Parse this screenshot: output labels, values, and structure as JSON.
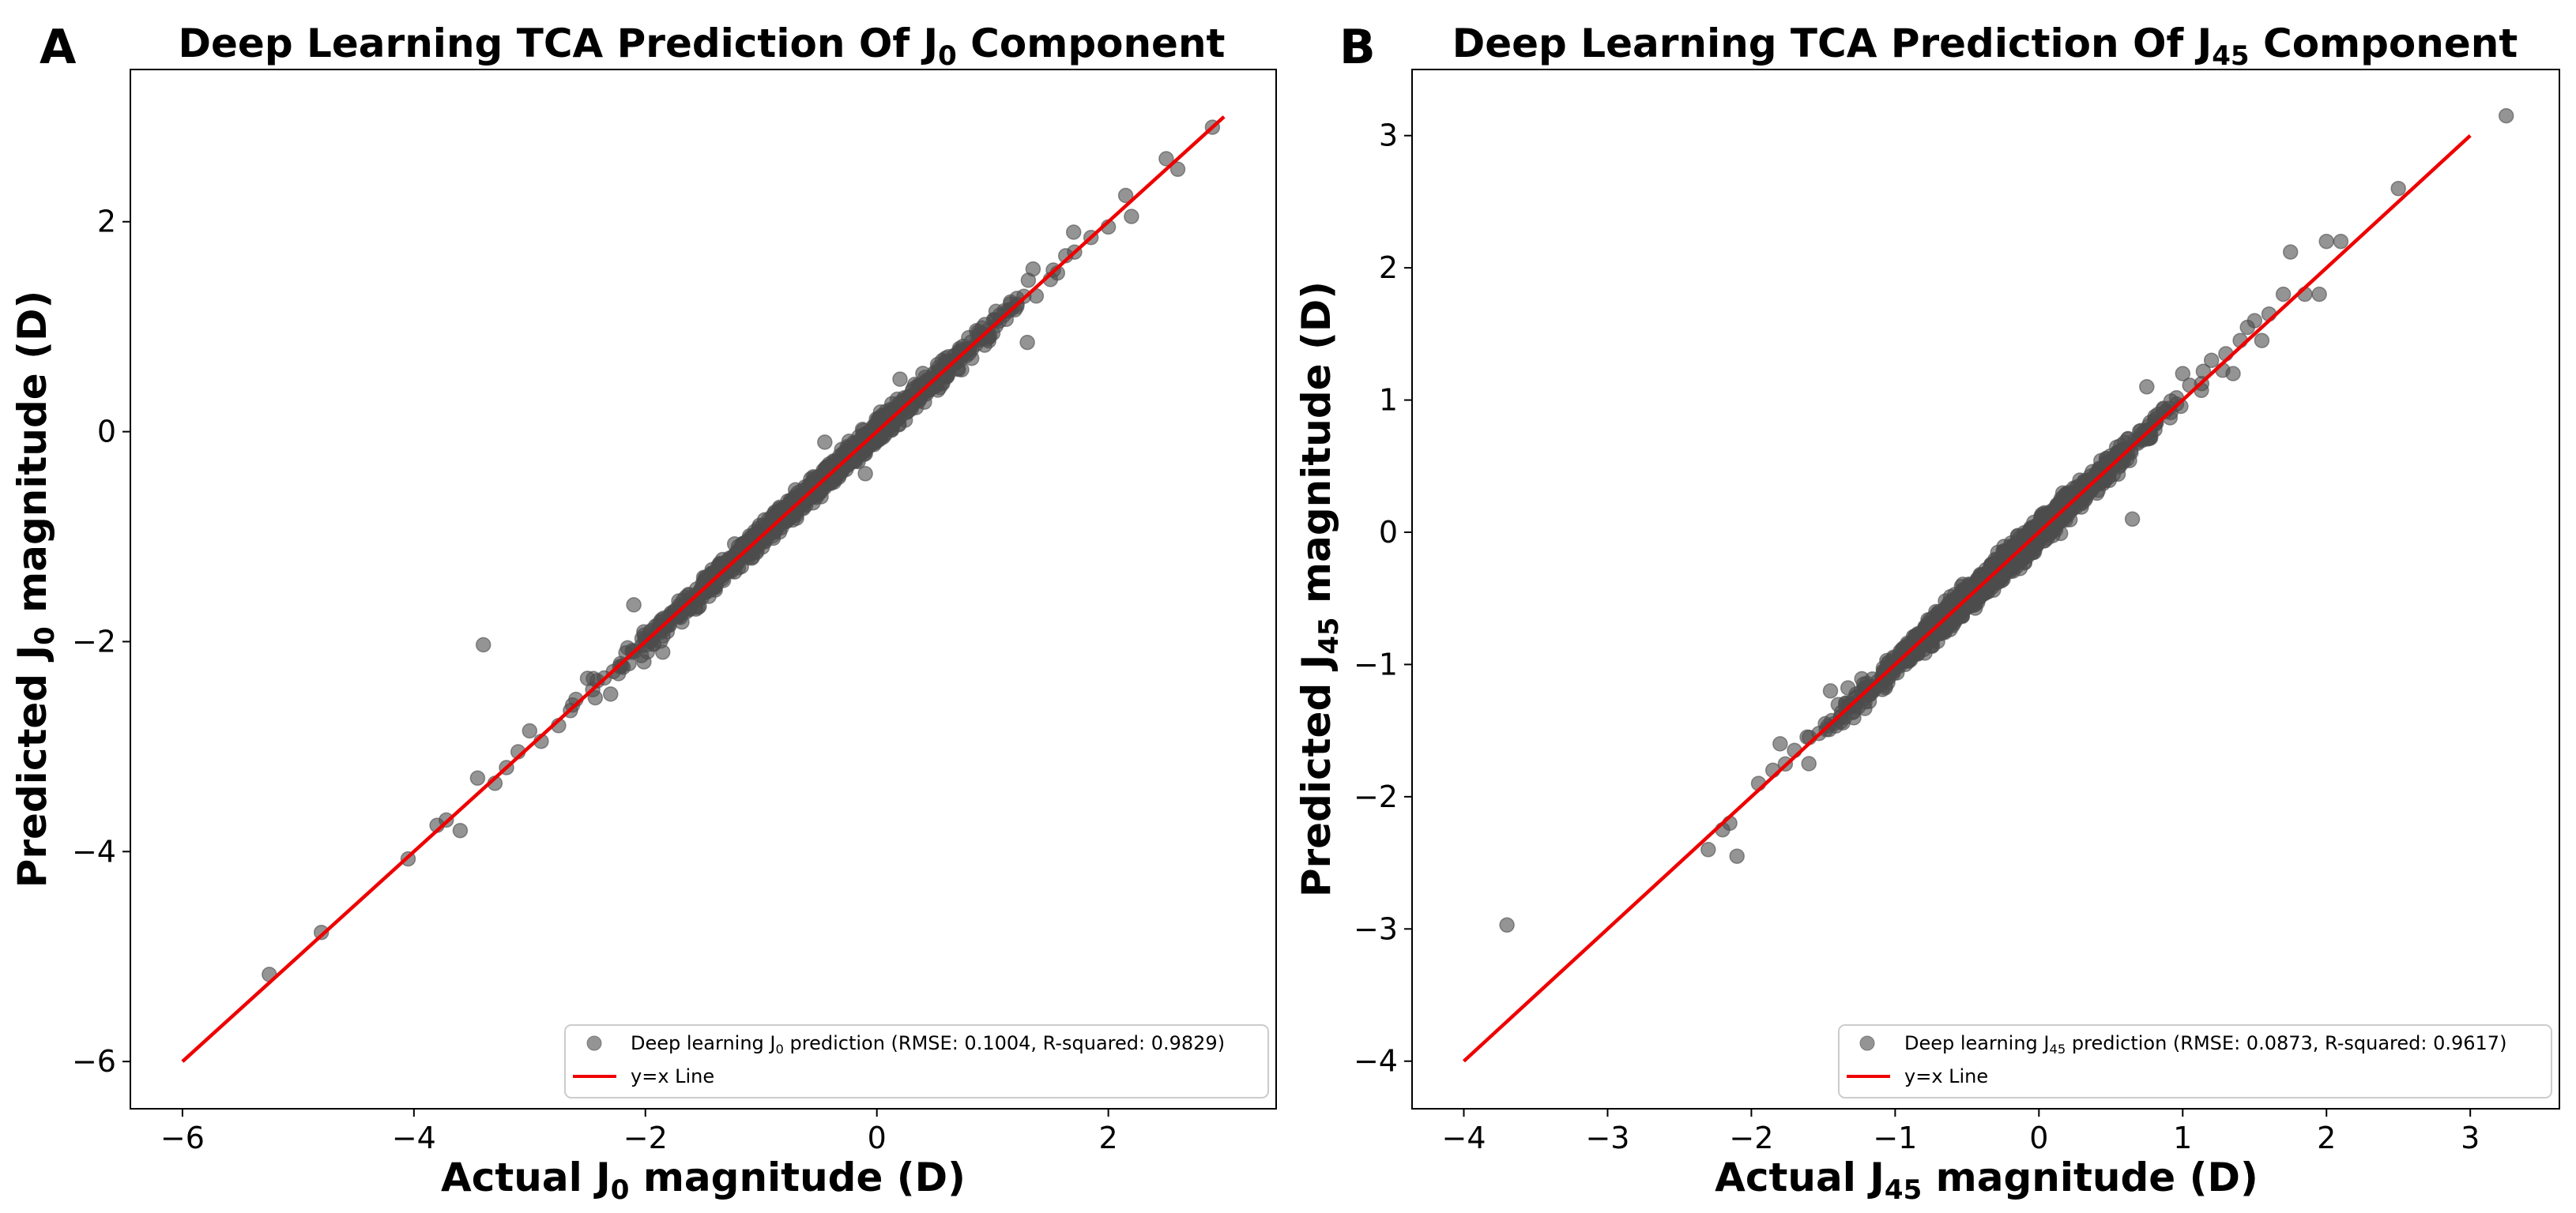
{
  "chart_data": [
    {
      "panel": "A",
      "type": "scatter",
      "title": {
        "prefix": "Deep Learning TCA Prediction Of J",
        "sub": "0",
        "suffix": " Component"
      },
      "xlabel": {
        "prefix": "Actual J",
        "sub": "0",
        "suffix": " magnitude (D)"
      },
      "ylabel": {
        "prefix": "Predicted J",
        "sub": "0",
        "suffix": " magnitude (D)"
      },
      "xlim": [
        -6.45,
        3.45
      ],
      "ylim": [
        -6.45,
        3.45
      ],
      "xticks": [
        -6,
        -4,
        -2,
        0,
        2
      ],
      "yticks": [
        -6,
        -4,
        -2,
        0,
        2
      ],
      "tick_labels_x": [
        "−6",
        "−4",
        "−2",
        "0",
        "2"
      ],
      "tick_labels_y": [
        "−6",
        "−4",
        "−2",
        "0",
        "2"
      ],
      "grid": false,
      "series": [
        {
          "name": "scatter",
          "label": {
            "prefix": "Deep learning J",
            "sub": "0",
            "suffix": " prediction (RMSE: 0.1004, R-squared: 0.9829)"
          },
          "color": "#4d4d4d",
          "opacity": 0.6,
          "bulk": {
            "x_range": [
              -2.5,
              1.6
            ],
            "spread": 0.13,
            "count": 1400
          },
          "points": [
            [
              -5.25,
              -5.17
            ],
            [
              -4.8,
              -4.77
            ],
            [
              -4.05,
              -4.07
            ],
            [
              -3.8,
              -3.75
            ],
            [
              -3.72,
              -3.7
            ],
            [
              -3.6,
              -3.8
            ],
            [
              -3.45,
              -3.3
            ],
            [
              -3.4,
              -2.03
            ],
            [
              -3.3,
              -3.35
            ],
            [
              -3.2,
              -3.2
            ],
            [
              -3.1,
              -3.05
            ],
            [
              -3.0,
              -2.85
            ],
            [
              -2.9,
              -2.95
            ],
            [
              -2.75,
              -2.8
            ],
            [
              -2.6,
              -2.55
            ],
            [
              -2.5,
              -2.35
            ],
            [
              -2.3,
              -2.5
            ],
            [
              -2.1,
              -1.65
            ],
            [
              -1.85,
              -2.1
            ],
            [
              -0.45,
              -0.1
            ],
            [
              -0.1,
              -0.4
            ],
            [
              0.2,
              0.5
            ],
            [
              1.3,
              0.85
            ],
            [
              1.35,
              1.55
            ],
            [
              1.5,
              1.45
            ],
            [
              1.7,
              1.9
            ],
            [
              1.85,
              1.85
            ],
            [
              2.0,
              1.95
            ],
            [
              2.2,
              2.05
            ],
            [
              2.15,
              2.25
            ],
            [
              2.5,
              2.6
            ],
            [
              2.6,
              2.5
            ],
            [
              2.9,
              2.9
            ]
          ]
        },
        {
          "name": "line",
          "label": "y=x Line",
          "color": "#ee0000",
          "from": [
            -6,
            -6
          ],
          "to": [
            3,
            3
          ]
        }
      ],
      "legend": "lower-right"
    },
    {
      "panel": "B",
      "type": "scatter",
      "title": {
        "prefix": "Deep Learning TCA Prediction Of J",
        "sub": "45",
        "suffix": " Component"
      },
      "xlabel": {
        "prefix": "Actual J",
        "sub": "45",
        "suffix": " magnitude (D)"
      },
      "ylabel": {
        "prefix": "Predicted J",
        "sub": "45",
        "suffix": " magnitude (D)"
      },
      "xlim": [
        -4.36,
        3.62
      ],
      "ylim": [
        -4.36,
        3.5
      ],
      "xticks": [
        -4,
        -3,
        -2,
        -1,
        0,
        1,
        2,
        3
      ],
      "yticks": [
        -4,
        -3,
        -2,
        -1,
        0,
        1,
        2,
        3
      ],
      "tick_labels_x": [
        "−4",
        "−3",
        "−2",
        "−1",
        "0",
        "1",
        "2",
        "3"
      ],
      "tick_labels_y": [
        "−4",
        "−3",
        "−2",
        "−1",
        "0",
        "1",
        "2",
        "3"
      ],
      "grid": false,
      "series": [
        {
          "name": "scatter",
          "label": {
            "prefix": "Deep learning J",
            "sub": "45",
            "suffix": " prediction (RMSE: 0.0873, R-squared: 0.9617)"
          },
          "color": "#4d4d4d",
          "opacity": 0.6,
          "bulk": {
            "x_range": [
              -1.6,
              1.1
            ],
            "spread": 0.12,
            "count": 1400
          },
          "points": [
            [
              -3.7,
              -2.97
            ],
            [
              -2.3,
              -2.4
            ],
            [
              -2.2,
              -2.25
            ],
            [
              -2.15,
              -2.2
            ],
            [
              -2.1,
              -2.45
            ],
            [
              -1.95,
              -1.9
            ],
            [
              -1.85,
              -1.8
            ],
            [
              -1.8,
              -1.6
            ],
            [
              -1.7,
              -1.65
            ],
            [
              -1.6,
              -1.75
            ],
            [
              -1.45,
              -1.2
            ],
            [
              -1.35,
              -1.4
            ],
            [
              0.65,
              0.1
            ],
            [
              0.75,
              1.1
            ],
            [
              1.0,
              1.2
            ],
            [
              1.2,
              1.3
            ],
            [
              1.3,
              1.35
            ],
            [
              1.35,
              1.2
            ],
            [
              1.4,
              1.45
            ],
            [
              1.45,
              1.55
            ],
            [
              1.5,
              1.6
            ],
            [
              1.55,
              1.45
            ],
            [
              1.6,
              1.65
            ],
            [
              1.7,
              1.8
            ],
            [
              1.75,
              2.12
            ],
            [
              1.85,
              1.8
            ],
            [
              1.95,
              1.8
            ],
            [
              2.0,
              2.2
            ],
            [
              2.1,
              2.2
            ],
            [
              2.5,
              2.6
            ],
            [
              3.25,
              3.15
            ]
          ]
        },
        {
          "name": "line",
          "label": "y=x Line",
          "color": "#ee0000",
          "from": [
            -4,
            -4
          ],
          "to": [
            3,
            3
          ]
        }
      ],
      "legend": "lower-right"
    }
  ]
}
